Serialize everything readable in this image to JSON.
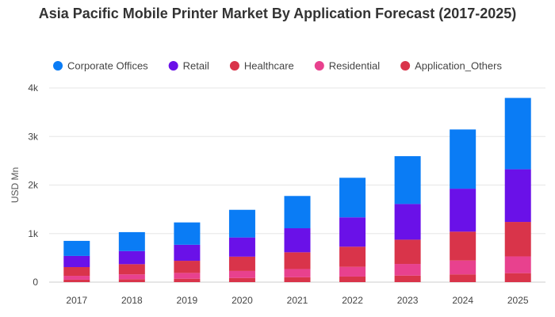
{
  "chart_data": {
    "type": "bar",
    "stacked": true,
    "title": "Asia Pacific Mobile Printer Market By Application Forecast (2017-2025)",
    "xlabel": "",
    "ylabel": "USD Mn",
    "ylim": [
      0,
      4000
    ],
    "yticks": [
      0,
      1000,
      2000,
      3000,
      4000
    ],
    "ytick_labels": [
      "0",
      "1k",
      "2k",
      "3k",
      "4k"
    ],
    "grid": true,
    "legend_position": "top",
    "categories": [
      "2017",
      "2018",
      "2019",
      "2020",
      "2021",
      "2022",
      "2023",
      "2024",
      "2025"
    ],
    "series": [
      {
        "name": "Application_Others",
        "color": "#d9344a",
        "values": [
          50,
          60,
          70,
          85,
          100,
          115,
          135,
          160,
          185
        ]
      },
      {
        "name": "Residential",
        "color": "#e8418e",
        "values": [
          80,
          100,
          120,
          145,
          170,
          200,
          240,
          285,
          345
        ]
      },
      {
        "name": "Healthcare",
        "color": "#d9344a",
        "values": [
          180,
          210,
          250,
          295,
          345,
          415,
          500,
          595,
          710
        ]
      },
      {
        "name": "Retail",
        "color": "#6a11e8",
        "values": [
          230,
          270,
          330,
          395,
          495,
          605,
          735,
          885,
          1085
        ]
      },
      {
        "name": "Corporate Offices",
        "color": "#0a7cf5",
        "values": [
          310,
          390,
          460,
          570,
          665,
          815,
          985,
          1220,
          1470
        ]
      }
    ],
    "legend_order": [
      "Corporate Offices",
      "Retail",
      "Healthcare",
      "Residential",
      "Application_Others"
    ]
  }
}
